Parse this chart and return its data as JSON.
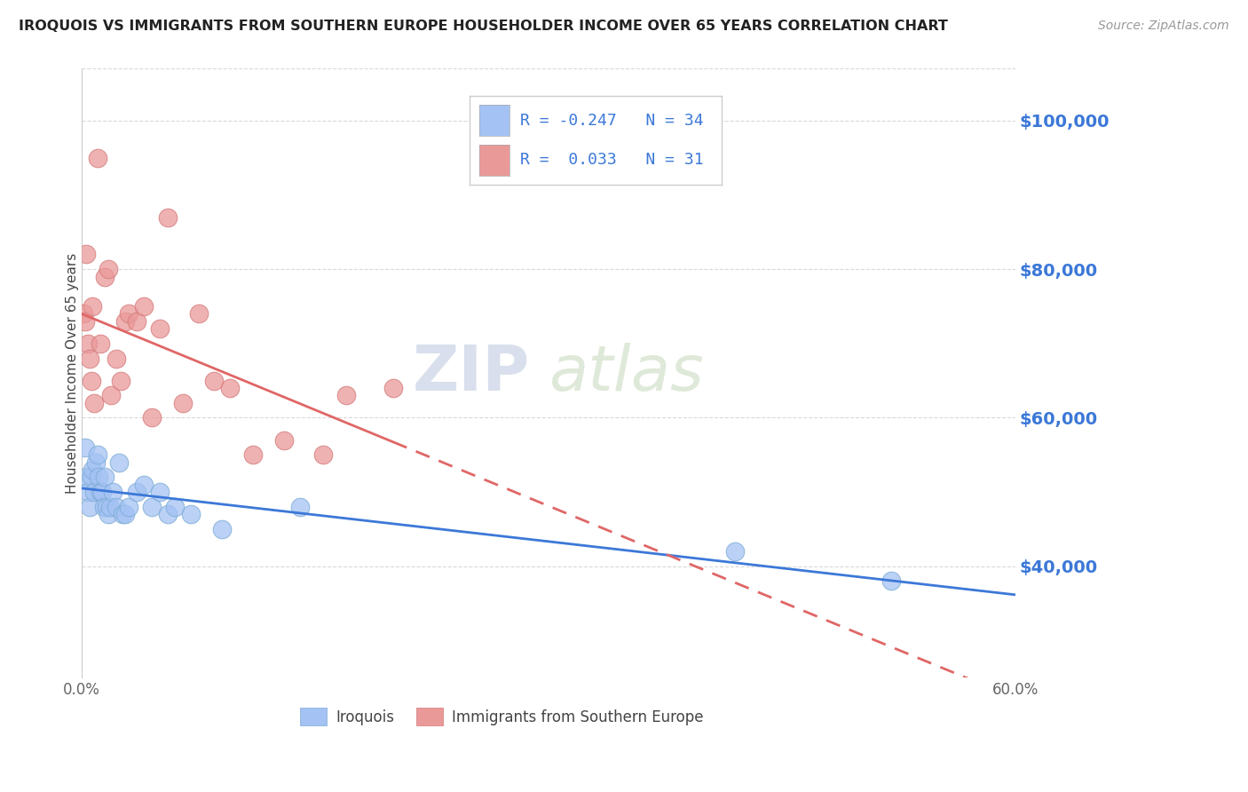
{
  "title": "IROQUOIS VS IMMIGRANTS FROM SOUTHERN EUROPE HOUSEHOLDER INCOME OVER 65 YEARS CORRELATION CHART",
  "source": "Source: ZipAtlas.com",
  "ylabel": "Householder Income Over 65 years",
  "xlim": [
    0.0,
    0.6
  ],
  "ylim": [
    25000,
    107000
  ],
  "yticks": [
    40000,
    60000,
    80000,
    100000
  ],
  "ytick_labels": [
    "$40,000",
    "$60,000",
    "$80,000",
    "$100,000"
  ],
  "xticks": [
    0.0,
    0.6
  ],
  "xtick_labels": [
    "0.0%",
    "60.0%"
  ],
  "legend_label1": "Iroquois",
  "legend_label2": "Immigrants from Southern Europe",
  "r1": -0.247,
  "n1": 34,
  "r2": 0.033,
  "n2": 31,
  "color1": "#a4c2f4",
  "color2": "#ea9999",
  "line_color1": "#3c78d8",
  "line_color2": "#e06666",
  "watermark_zip": "ZIP",
  "watermark_atlas": "atlas",
  "bg_color": "#ffffff",
  "grid_color": "#d9d9d9",
  "iroquois_x": [
    0.002,
    0.003,
    0.004,
    0.005,
    0.006,
    0.007,
    0.008,
    0.009,
    0.01,
    0.011,
    0.012,
    0.013,
    0.014,
    0.015,
    0.016,
    0.017,
    0.018,
    0.02,
    0.022,
    0.024,
    0.026,
    0.028,
    0.03,
    0.035,
    0.04,
    0.045,
    0.05,
    0.055,
    0.06,
    0.07,
    0.09,
    0.14,
    0.42,
    0.52
  ],
  "iroquois_y": [
    56000,
    52000,
    50000,
    48000,
    52000,
    53000,
    50000,
    54000,
    55000,
    52000,
    50000,
    50000,
    48000,
    52000,
    48000,
    47000,
    48000,
    50000,
    48000,
    54000,
    47000,
    47000,
    48000,
    50000,
    51000,
    48000,
    50000,
    47000,
    48000,
    47000,
    45000,
    48000,
    42000,
    38000
  ],
  "immigrants_x": [
    0.001,
    0.002,
    0.003,
    0.004,
    0.005,
    0.006,
    0.007,
    0.008,
    0.01,
    0.012,
    0.015,
    0.017,
    0.019,
    0.022,
    0.025,
    0.028,
    0.03,
    0.035,
    0.04,
    0.045,
    0.05,
    0.055,
    0.065,
    0.075,
    0.085,
    0.095,
    0.11,
    0.13,
    0.155,
    0.17,
    0.2
  ],
  "immigrants_y": [
    74000,
    73000,
    82000,
    70000,
    68000,
    65000,
    75000,
    62000,
    95000,
    70000,
    79000,
    80000,
    63000,
    68000,
    65000,
    73000,
    74000,
    73000,
    75000,
    60000,
    72000,
    87000,
    62000,
    74000,
    65000,
    64000,
    55000,
    57000,
    55000,
    63000,
    64000
  ]
}
